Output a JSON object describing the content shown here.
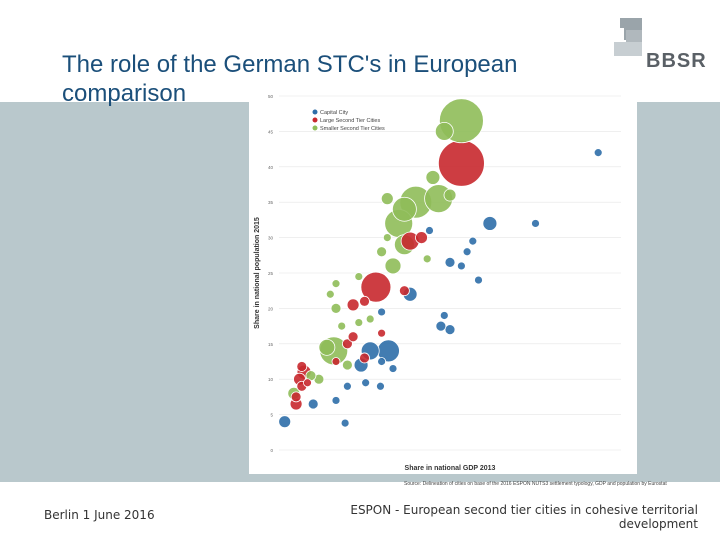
{
  "slide": {
    "title": "The role of the German STC's in European comparison",
    "logo_text": "BBSR",
    "source": "Source: Delineation of cities on base of the 2016 ESPON NUTS3 settlement typology, GDP and population by Eurostat",
    "footer_left": "Berlin 1 June 2016",
    "footer_right": "ESPON - European second tier cities in cohesive territorial development"
  },
  "colors": {
    "band": "#b9c8cc",
    "title": "#1b4f7a",
    "capital": "#2e6ea8",
    "large_stc": "#c8282d",
    "smaller_stc": "#8fbd59"
  },
  "chart_data": {
    "type": "scatter",
    "bubble": true,
    "xlabel": "Share in national GDP 2013",
    "ylabel": "Share in national population 2015",
    "ylim": [
      0,
      50
    ],
    "yticks": [
      0,
      5,
      10,
      15,
      20,
      25,
      30,
      35,
      40,
      45,
      50
    ],
    "grid": true,
    "legend_position": "top-left",
    "series": [
      {
        "name": "Capital City",
        "color": "#2e6ea8",
        "points": [
          {
            "x": 0.5,
            "y": 4.0,
            "r": 6
          },
          {
            "x": 5.8,
            "y": 3.8,
            "r": 4
          },
          {
            "x": 3.0,
            "y": 6.5,
            "r": 5
          },
          {
            "x": 5.0,
            "y": 7.0,
            "r": 4
          },
          {
            "x": 6.0,
            "y": 9.0,
            "r": 4
          },
          {
            "x": 7.2,
            "y": 12.0,
            "r": 7
          },
          {
            "x": 8.0,
            "y": 14.0,
            "r": 9
          },
          {
            "x": 9.6,
            "y": 14.0,
            "r": 11
          },
          {
            "x": 10.0,
            "y": 11.5,
            "r": 4
          },
          {
            "x": 9.0,
            "y": 12.5,
            "r": 4
          },
          {
            "x": 7.6,
            "y": 9.5,
            "r": 4
          },
          {
            "x": 8.9,
            "y": 9.0,
            "r": 4
          },
          {
            "x": 15.0,
            "y": 17.0,
            "r": 5
          },
          {
            "x": 14.2,
            "y": 17.5,
            "r": 5
          },
          {
            "x": 14.5,
            "y": 19.0,
            "r": 4
          },
          {
            "x": 18.5,
            "y": 32.0,
            "r": 7
          },
          {
            "x": 16.5,
            "y": 28.0,
            "r": 4
          },
          {
            "x": 17.0,
            "y": 29.5,
            "r": 4
          },
          {
            "x": 16.0,
            "y": 26.0,
            "r": 4
          },
          {
            "x": 15.0,
            "y": 26.5,
            "r": 5
          },
          {
            "x": 17.5,
            "y": 24.0,
            "r": 4
          },
          {
            "x": 22.5,
            "y": 32.0,
            "r": 4
          },
          {
            "x": 28.0,
            "y": 42.0,
            "r": 4
          },
          {
            "x": 13.2,
            "y": 31.0,
            "r": 4
          },
          {
            "x": 11.5,
            "y": 22.0,
            "r": 7
          },
          {
            "x": 9.0,
            "y": 19.5,
            "r": 4
          }
        ]
      },
      {
        "name": "Large Second Tier Cities",
        "color": "#c8282d",
        "points": [
          {
            "x": 1.5,
            "y": 6.5,
            "r": 6
          },
          {
            "x": 1.5,
            "y": 7.5,
            "r": 5
          },
          {
            "x": 2.0,
            "y": 9.0,
            "r": 5
          },
          {
            "x": 1.8,
            "y": 10.0,
            "r": 6
          },
          {
            "x": 2.2,
            "y": 11.0,
            "r": 7
          },
          {
            "x": 2.0,
            "y": 11.8,
            "r": 5
          },
          {
            "x": 2.5,
            "y": 9.5,
            "r": 4
          },
          {
            "x": 5.0,
            "y": 12.5,
            "r": 4
          },
          {
            "x": 6.0,
            "y": 15.0,
            "r": 5
          },
          {
            "x": 6.5,
            "y": 16.0,
            "r": 5
          },
          {
            "x": 7.5,
            "y": 13.0,
            "r": 5
          },
          {
            "x": 6.5,
            "y": 20.5,
            "r": 6
          },
          {
            "x": 7.5,
            "y": 21.0,
            "r": 5
          },
          {
            "x": 8.5,
            "y": 23.0,
            "r": 15
          },
          {
            "x": 9.0,
            "y": 16.5,
            "r": 4
          },
          {
            "x": 11.0,
            "y": 22.5,
            "r": 5
          },
          {
            "x": 11.5,
            "y": 29.5,
            "r": 9
          },
          {
            "x": 12.5,
            "y": 30.0,
            "r": 6
          },
          {
            "x": 16.0,
            "y": 40.5,
            "r": 23
          }
        ]
      },
      {
        "name": "Smaller Second Tier Cities",
        "color": "#8fbd59",
        "points": [
          {
            "x": 16.0,
            "y": 46.5,
            "r": 22
          },
          {
            "x": 14.5,
            "y": 45.0,
            "r": 9
          },
          {
            "x": 13.5,
            "y": 38.5,
            "r": 7
          },
          {
            "x": 14.0,
            "y": 35.5,
            "r": 14
          },
          {
            "x": 12.0,
            "y": 35.0,
            "r": 16
          },
          {
            "x": 15.0,
            "y": 36.0,
            "r": 6
          },
          {
            "x": 9.5,
            "y": 35.5,
            "r": 6
          },
          {
            "x": 11.0,
            "y": 34.0,
            "r": 12
          },
          {
            "x": 10.5,
            "y": 32.0,
            "r": 14
          },
          {
            "x": 11.0,
            "y": 29.0,
            "r": 10
          },
          {
            "x": 10.0,
            "y": 26.0,
            "r": 8
          },
          {
            "x": 9.0,
            "y": 28.0,
            "r": 5
          },
          {
            "x": 9.5,
            "y": 30.0,
            "r": 4
          },
          {
            "x": 13.0,
            "y": 27.0,
            "r": 4
          },
          {
            "x": 7.0,
            "y": 24.5,
            "r": 4
          },
          {
            "x": 5.0,
            "y": 23.5,
            "r": 4
          },
          {
            "x": 4.5,
            "y": 22.0,
            "r": 4
          },
          {
            "x": 5.0,
            "y": 20.0,
            "r": 5
          },
          {
            "x": 7.0,
            "y": 18.0,
            "r": 4
          },
          {
            "x": 8.0,
            "y": 18.5,
            "r": 4
          },
          {
            "x": 5.5,
            "y": 17.5,
            "r": 4
          },
          {
            "x": 4.8,
            "y": 14.0,
            "r": 14
          },
          {
            "x": 4.2,
            "y": 14.5,
            "r": 8
          },
          {
            "x": 6.0,
            "y": 12.0,
            "r": 5
          },
          {
            "x": 3.5,
            "y": 10.0,
            "r": 5
          },
          {
            "x": 2.8,
            "y": 10.5,
            "r": 5
          },
          {
            "x": 1.3,
            "y": 8.0,
            "r": 6
          }
        ]
      }
    ]
  }
}
